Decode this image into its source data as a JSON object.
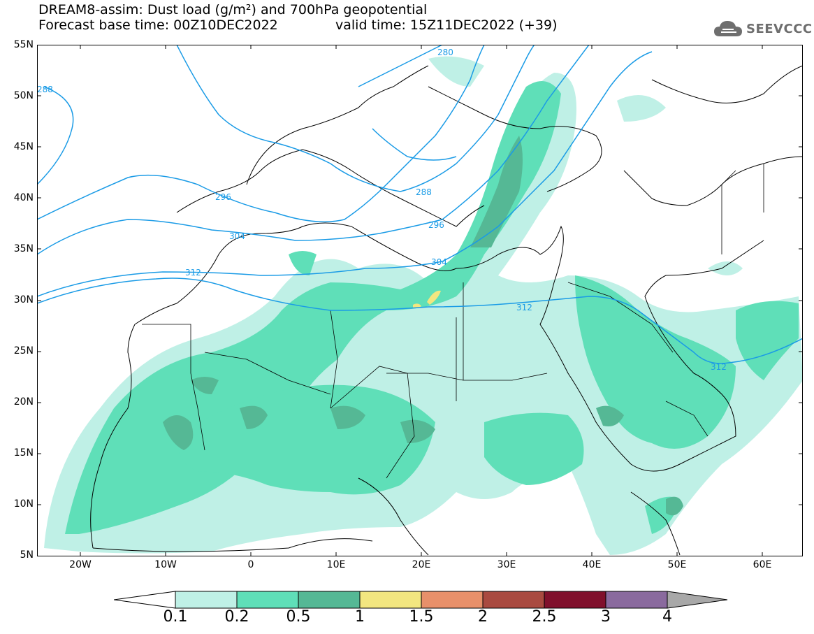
{
  "title_line1": "DREAM8-assim: Dust load (g/m²) and 700hPa geopotential",
  "title_line2": "Forecast base time: 00Z10DEC2022",
  "valid_time": "valid time: 15Z11DEC2022 (+39)",
  "logo": {
    "text": "SEEVCCC",
    "icon": "cloud-icon"
  },
  "lat_labels": [
    "55N",
    "50N",
    "45N",
    "40N",
    "35N",
    "30N",
    "25N",
    "20N",
    "15N",
    "10N",
    "5N"
  ],
  "lon_labels": [
    "20W",
    "10W",
    "0",
    "10E",
    "20E",
    "30E",
    "40E",
    "50E",
    "60E"
  ],
  "contour_labels": [
    "280",
    "288",
    "288",
    "296",
    "296",
    "304",
    "304",
    "312",
    "312",
    "312"
  ],
  "colorbar": {
    "levels": [
      "0.1",
      "0.2",
      "0.5",
      "1",
      "1.5",
      "2",
      "2.5",
      "3",
      "4"
    ],
    "colors": [
      "#ffffff",
      "#bff0e6",
      "#5fdfb8",
      "#55b895",
      "#f2e680",
      "#e8906a",
      "#a94a40",
      "#80102c",
      "#8a6a9e",
      "#a8a8a8"
    ]
  },
  "colors": {
    "dust_low": "#bff0e6",
    "dust_mid": "#5fdfb8",
    "dust_high": "#55b895",
    "dust_peak": "#f2e680",
    "contour": "#1a9be6"
  }
}
